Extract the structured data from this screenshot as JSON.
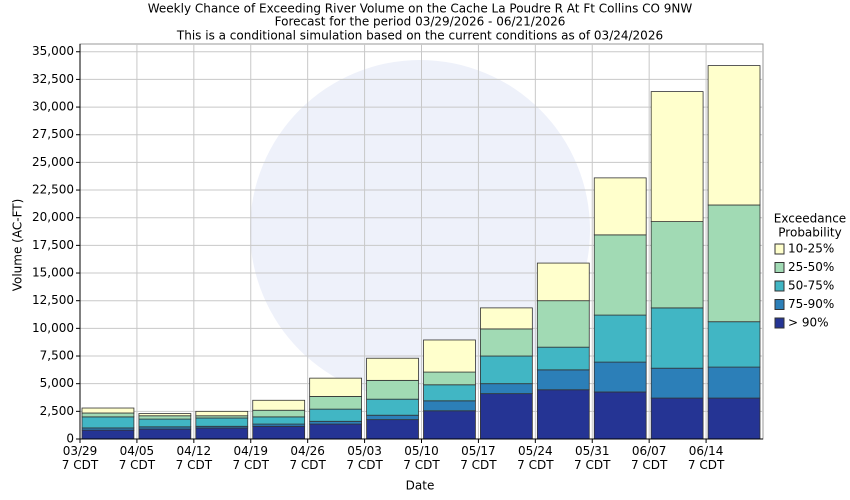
{
  "chart_data": {
    "type": "stacked_bar",
    "title": "Weekly Chance of Exceeding River Volume on the Cache La Poudre R At Ft Collins CO 9NW",
    "subtitle": [
      "Forecast for the period 03/29/2026 - 06/21/2026",
      "This is a conditional simulation based on the current conditions as of 03/24/2026"
    ],
    "x_label": "Date",
    "y_label": "Volume (AC-FT)",
    "legend_title": [
      "Exceedance",
      "Probability"
    ],
    "categories": [
      [
        "03/29",
        "7 CDT"
      ],
      [
        "04/05",
        "7 CDT"
      ],
      [
        "04/12",
        "7 CDT"
      ],
      [
        "04/19",
        "7 CDT"
      ],
      [
        "04/26",
        "7 CDT"
      ],
      [
        "05/03",
        "7 CDT"
      ],
      [
        "05/10",
        "7 CDT"
      ],
      [
        "05/17",
        "7 CDT"
      ],
      [
        "05/24",
        "7 CDT"
      ],
      [
        "05/31",
        "7 CDT"
      ],
      [
        "06/07",
        "7 CDT"
      ],
      [
        "06/14",
        "7 CDT"
      ]
    ],
    "series": [
      {
        "name": "> 90%",
        "color": "#253494",
        "values": [
          800,
          900,
          1000,
          1150,
          1350,
          1750,
          2550,
          4100,
          4450,
          4250,
          3700,
          3700
        ]
      },
      {
        "name": "75-90%",
        "color": "#2c7fb8",
        "values": [
          200,
          200,
          150,
          200,
          250,
          400,
          900,
          900,
          1800,
          2700,
          2700,
          2800
        ]
      },
      {
        "name": "50-75%",
        "color": "#41b6c4",
        "values": [
          1000,
          700,
          750,
          650,
          1100,
          1450,
          1450,
          2500,
          2050,
          4250,
          5450,
          4100
        ]
      },
      {
        "name": "25-50%",
        "color": "#a1dab4",
        "values": [
          350,
          300,
          200,
          600,
          1150,
          1700,
          1150,
          2450,
          4200,
          7250,
          7800,
          10550
        ]
      },
      {
        "name": "10-25%",
        "color": "#ffffcc",
        "values": [
          450,
          200,
          400,
          900,
          1650,
          2000,
          2900,
          1900,
          3400,
          5150,
          11750,
          12600
        ]
      }
    ],
    "ylim": [
      0,
      35700
    ],
    "yticks": [
      0,
      {
        "value": 2500,
        "label": "2,500"
      },
      {
        "value": 5000,
        "label": "5,000"
      },
      {
        "value": 7500,
        "label": "7,500"
      },
      {
        "value": 10000,
        "label": "10,000"
      },
      {
        "value": 12500,
        "label": "12,500"
      },
      {
        "value": 15000,
        "label": "15,000"
      },
      {
        "value": 17500,
        "label": "17,500"
      },
      {
        "value": 20000,
        "label": "20,000"
      },
      {
        "value": 22500,
        "label": "22,500"
      },
      {
        "value": 25000,
        "label": "25,000"
      },
      {
        "value": 27500,
        "label": "27,500"
      },
      {
        "value": 30000,
        "label": "30,000"
      },
      {
        "value": 32500,
        "label": "32,500"
      },
      {
        "value": 35000,
        "label": "35,000"
      }
    ],
    "grid": true,
    "legend_position": "right"
  }
}
